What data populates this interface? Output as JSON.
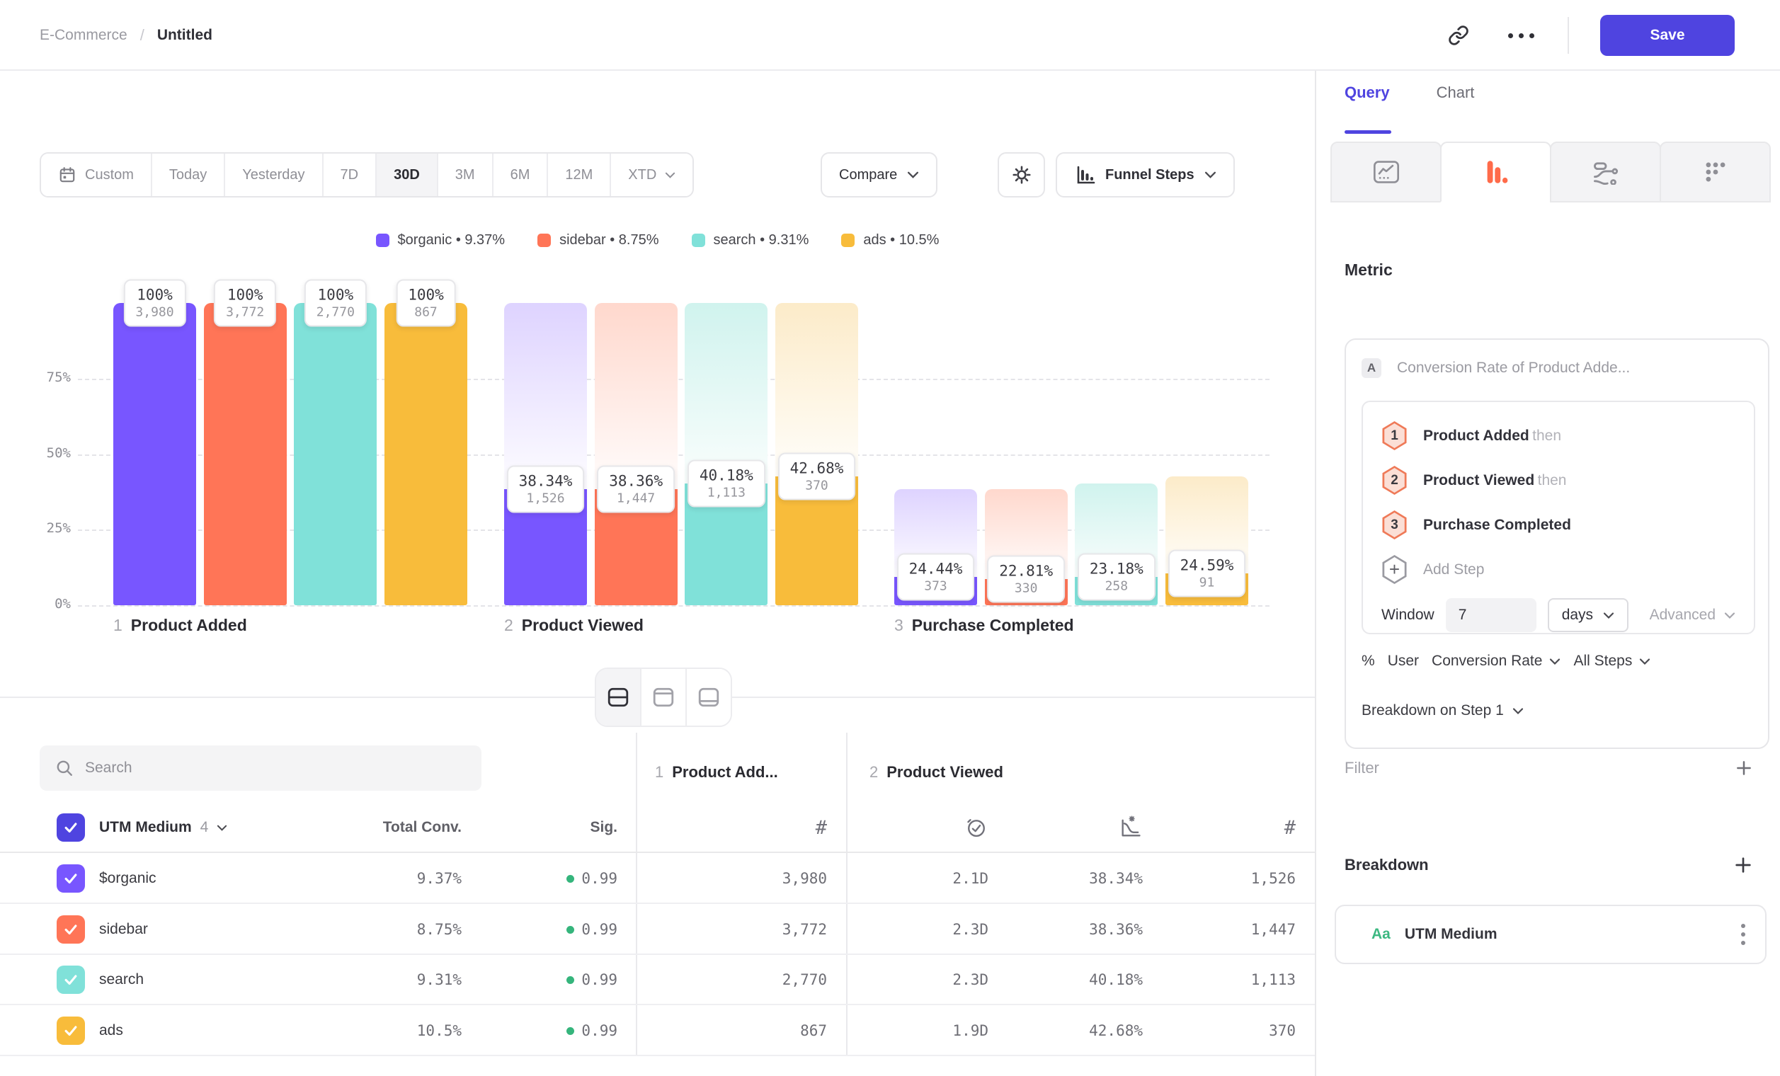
{
  "topbar": {
    "breadcrumb_parent": "E-Commerce",
    "breadcrumb_sep": "/",
    "breadcrumb_current": "Untitled",
    "save_label": "Save"
  },
  "toolbar": {
    "date_tabs": [
      {
        "label": "Custom",
        "icon": "calendar",
        "active": false
      },
      {
        "label": "Today",
        "active": false
      },
      {
        "label": "Yesterday",
        "active": false
      },
      {
        "label": "7D",
        "active": false
      },
      {
        "label": "30D",
        "active": true
      },
      {
        "label": "3M",
        "active": false
      },
      {
        "label": "6M",
        "active": false
      },
      {
        "label": "12M",
        "active": false
      },
      {
        "label": "XTD",
        "chevron": true,
        "active": false
      }
    ],
    "compare_label": "Compare",
    "chart_type_label": "Funnel Steps"
  },
  "legend": {
    "items": [
      {
        "name": "$organic",
        "value": "9.37%",
        "color": "#7856FF"
      },
      {
        "name": "sidebar",
        "value": "8.75%",
        "color": "#FF7557"
      },
      {
        "name": "search",
        "value": "9.31%",
        "color": "#80E1D9"
      },
      {
        "name": "ads",
        "value": "10.5%",
        "color": "#F8BC3B"
      }
    ]
  },
  "chart_data": {
    "type": "bar",
    "subtype": "funnel-steps",
    "title": "",
    "xlabel": "",
    "ylabel": "",
    "ylim": [
      0,
      100
    ],
    "grid": "dashed-horizontal",
    "yticks": [
      {
        "label": "75%",
        "pct": 75
      },
      {
        "label": "50%",
        "pct": 50
      },
      {
        "label": "25%",
        "pct": 25
      },
      {
        "label": "0%",
        "pct": 0
      }
    ],
    "series": [
      "$organic",
      "sidebar",
      "search",
      "ads"
    ],
    "colors": [
      "#7856FF",
      "#FF7557",
      "#80E1D9",
      "#F8BC3B"
    ],
    "ghost_top": [
      "#ded3ff",
      "#ffd8cd",
      "#d0f3ee",
      "#fcebc9"
    ],
    "ghost_bottom": [
      "#fcfbff",
      "#fffbfa",
      "#f8fdfc",
      "#fffdf8"
    ],
    "steps": [
      {
        "num": "1",
        "label": "Product Added",
        "bars": [
          {
            "pct_label": "100%",
            "count_label": "3,980",
            "height_pct": 100,
            "ghost_from_pct": null
          },
          {
            "pct_label": "100%",
            "count_label": "3,772",
            "height_pct": 100,
            "ghost_from_pct": null
          },
          {
            "pct_label": "100%",
            "count_label": "2,770",
            "height_pct": 100,
            "ghost_from_pct": null
          },
          {
            "pct_label": "100%",
            "count_label": "867",
            "height_pct": 100,
            "ghost_from_pct": null
          }
        ]
      },
      {
        "num": "2",
        "label": "Product Viewed",
        "bars": [
          {
            "pct_label": "38.34%",
            "count_label": "1,526",
            "height_pct": 38.34,
            "ghost_from_pct": 100
          },
          {
            "pct_label": "38.36%",
            "count_label": "1,447",
            "height_pct": 38.36,
            "ghost_from_pct": 100
          },
          {
            "pct_label": "40.18%",
            "count_label": "1,113",
            "height_pct": 40.18,
            "ghost_from_pct": 100
          },
          {
            "pct_label": "42.68%",
            "count_label": "370",
            "height_pct": 42.68,
            "ghost_from_pct": 100
          }
        ]
      },
      {
        "num": "3",
        "label": "Purchase Completed",
        "bars": [
          {
            "pct_label": "24.44%",
            "count_label": "373",
            "height_pct": 9.37,
            "ghost_from_pct": 38.34
          },
          {
            "pct_label": "22.81%",
            "count_label": "330",
            "height_pct": 8.75,
            "ghost_from_pct": 38.36
          },
          {
            "pct_label": "23.18%",
            "count_label": "258",
            "height_pct": 9.31,
            "ghost_from_pct": 40.18
          },
          {
            "pct_label": "24.59%",
            "count_label": "91",
            "height_pct": 10.5,
            "ghost_from_pct": 42.68
          }
        ]
      }
    ]
  },
  "view_switcher": {
    "selected": 0
  },
  "table": {
    "search_placeholder": "Search",
    "group_label": "UTM Medium",
    "group_count": "4",
    "col_total": "Total Conv.",
    "col_sig": "Sig.",
    "step_cols": [
      {
        "num": "1",
        "label": "Product Add..."
      },
      {
        "num": "2",
        "label": "Product Viewed"
      }
    ],
    "rows": [
      {
        "label": "$organic",
        "color": "#7856FF",
        "total": "9.37%",
        "sig": "0.99",
        "s1_count": "3,980",
        "s2_time": "2.1D",
        "s2_rate": "38.34%",
        "s2_count": "1,526"
      },
      {
        "label": "sidebar",
        "color": "#FF7557",
        "total": "8.75%",
        "sig": "0.99",
        "s1_count": "3,772",
        "s2_time": "2.3D",
        "s2_rate": "38.36%",
        "s2_count": "1,447"
      },
      {
        "label": "search",
        "color": "#80E1D9",
        "total": "9.31%",
        "sig": "0.99",
        "s1_count": "2,770",
        "s2_time": "2.3D",
        "s2_rate": "40.18%",
        "s2_count": "1,113"
      },
      {
        "label": "ads",
        "color": "#F8BC3B",
        "total": "10.5%",
        "sig": "0.99",
        "s1_count": "867",
        "s2_time": "1.9D",
        "s2_rate": "42.68%",
        "s2_count": "370"
      }
    ]
  },
  "panel": {
    "tab_query": "Query",
    "tab_chart": "Chart",
    "metric_heading": "Metric",
    "metric_badge": "A",
    "metric_label": "Conversion Rate of Product Adde...",
    "steps": [
      {
        "num": "1",
        "label": "Product Added",
        "suffix": "then"
      },
      {
        "num": "2",
        "label": "Product Viewed",
        "suffix": "then"
      },
      {
        "num": "3",
        "label": "Purchase Completed",
        "suffix": ""
      }
    ],
    "add_step_label": "Add Step",
    "window_label": "Window",
    "window_value": "7",
    "window_unit": "days",
    "advanced_label": "Advanced",
    "measure_prefix": "%",
    "measure_user": "User",
    "measure_type": "Conversion Rate",
    "measure_scope": "All Steps",
    "breakdown_on": "Breakdown on Step 1",
    "filter_heading": "Filter",
    "breakdown_heading": "Breakdown",
    "breakdown_type_icon": "Aa",
    "breakdown_item": "UTM Medium"
  },
  "colors": {
    "accent": "#4f44e0",
    "sig_green": "#35b57c",
    "funnel_tab_orange": "#ff6b4a"
  }
}
